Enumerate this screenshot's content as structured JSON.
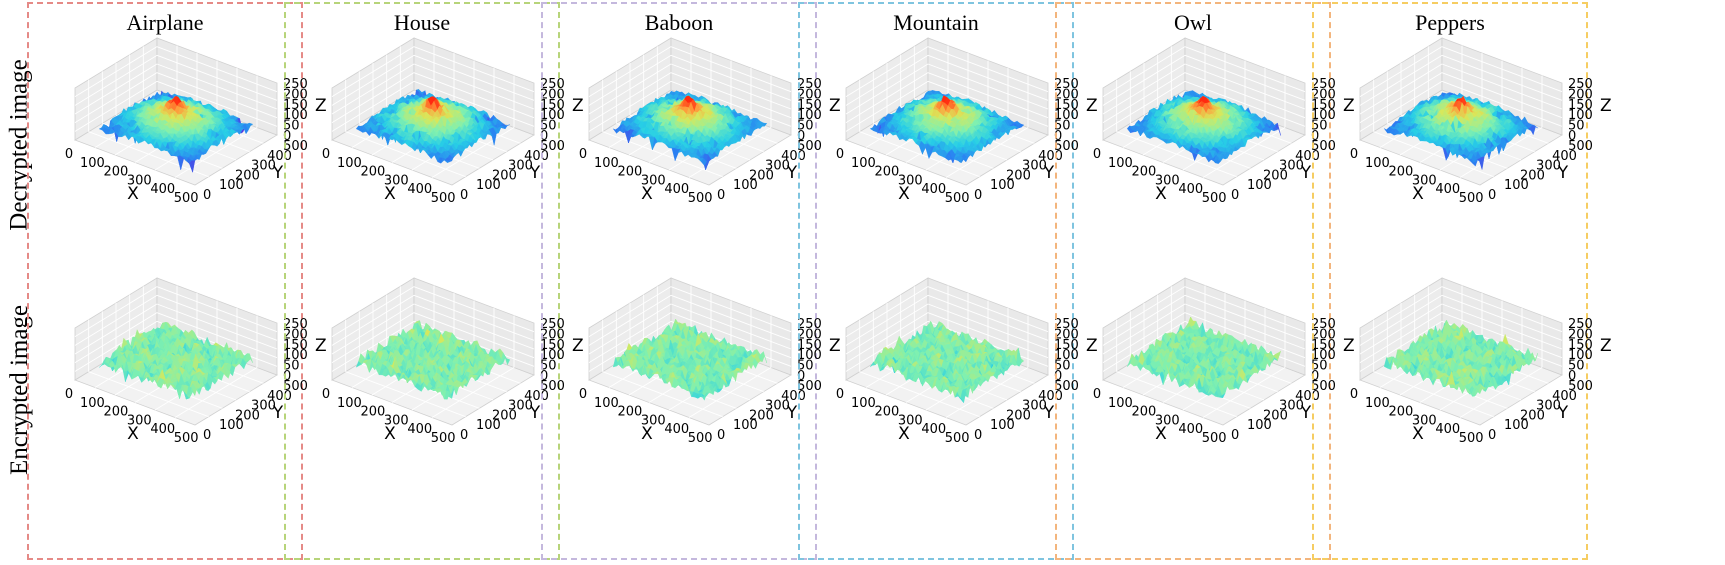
{
  "row_labels": [
    "Decrypted image",
    "Encrypted image"
  ],
  "panels": [
    {
      "title": "Airplane",
      "border_color": "#e58a87"
    },
    {
      "title": "House",
      "border_color": "#b7d47a"
    },
    {
      "title": "Baboon",
      "border_color": "#c4b8dd"
    },
    {
      "title": "Mountain",
      "border_color": "#7fc4df"
    },
    {
      "title": "Owl",
      "border_color": "#f3b57d"
    },
    {
      "title": "Peppers",
      "border_color": "#f6cd62"
    }
  ],
  "chart_data": {
    "type": "surface3d",
    "columns": [
      "Airplane",
      "House",
      "Baboon",
      "Mountain",
      "Owl",
      "Peppers"
    ],
    "rows": [
      "Decrypted image",
      "Encrypted image"
    ],
    "xlabel": "X",
    "ylabel": "Y",
    "zlabel": "Z",
    "xticks": [
      0,
      100,
      200,
      300,
      400,
      500
    ],
    "yticks": [
      0,
      100,
      200,
      300,
      400,
      500
    ],
    "zticks": [
      0,
      50,
      100,
      150,
      200,
      250
    ],
    "xlim": [
      0,
      512
    ],
    "ylim": [
      0,
      512
    ],
    "zlim": [
      0,
      250
    ],
    "colormap": "rainbow",
    "colormap_stops": [
      "#5a2ee0",
      "#2a7ff2",
      "#27cfe6",
      "#7ff0b0",
      "#d8e85a",
      "#ff9a3a",
      "#ff2a10"
    ],
    "grid": true,
    "surfaces": {
      "Decrypted image": {
        "shape": "central peak with mound",
        "peak_z": 165,
        "base_z": 30
      },
      "Encrypted image": {
        "shape": "flat noise",
        "mean_z": 85
      }
    }
  }
}
